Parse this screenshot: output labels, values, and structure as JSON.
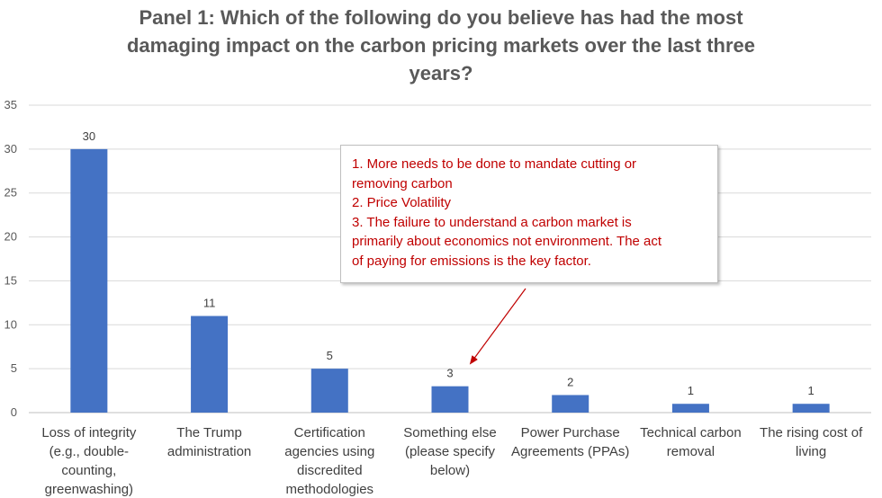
{
  "chart_data": {
    "type": "bar",
    "title": "Panel 1: Which of the following do you believe has had the most damaging impact on the carbon pricing markets over the last three years?",
    "title_lines": [
      "Panel 1: Which of the following do you believe has had the most",
      "damaging impact on the carbon pricing markets over the last three",
      "years?"
    ],
    "categories": [
      "Loss of integrity (e.g., double-counting, greenwashing)",
      "The Trump administration",
      "Certification agencies using discredited methodologies",
      "Something else (please specify below)",
      "Power Purchase Agreements (PPAs)",
      "Technical carbon removal",
      "The rising cost of living"
    ],
    "category_lines": [
      [
        "Loss of integrity",
        "(e.g., double-",
        "counting,",
        "greenwashing)"
      ],
      [
        "The Trump",
        "administration"
      ],
      [
        "Certification",
        "agencies using",
        "discredited",
        "methodologies"
      ],
      [
        "Something else",
        "(please specify",
        "below)"
      ],
      [
        "Power Purchase",
        "Agreements (PPAs)"
      ],
      [
        "Technical carbon",
        "removal"
      ],
      [
        "The rising cost of",
        "living"
      ]
    ],
    "values": [
      30,
      11,
      5,
      3,
      2,
      1,
      1
    ],
    "ylim": [
      0,
      35
    ],
    "yticks": [
      0,
      5,
      10,
      15,
      20,
      25,
      30,
      35
    ],
    "grid": true,
    "bar_color": "#4472C4",
    "gridline_color": "#d9d9d9",
    "annotation": {
      "lines": [
        "1. More needs to be done to mandate cutting or",
        "removing carbon",
        "2. Price Volatility",
        "3. The failure to understand a carbon market is",
        "primarily about economics not environment.  The act",
        "of paying for emissions is the key factor."
      ],
      "color": "#C00000",
      "points_to_category": "Something else (please specify below)"
    }
  }
}
